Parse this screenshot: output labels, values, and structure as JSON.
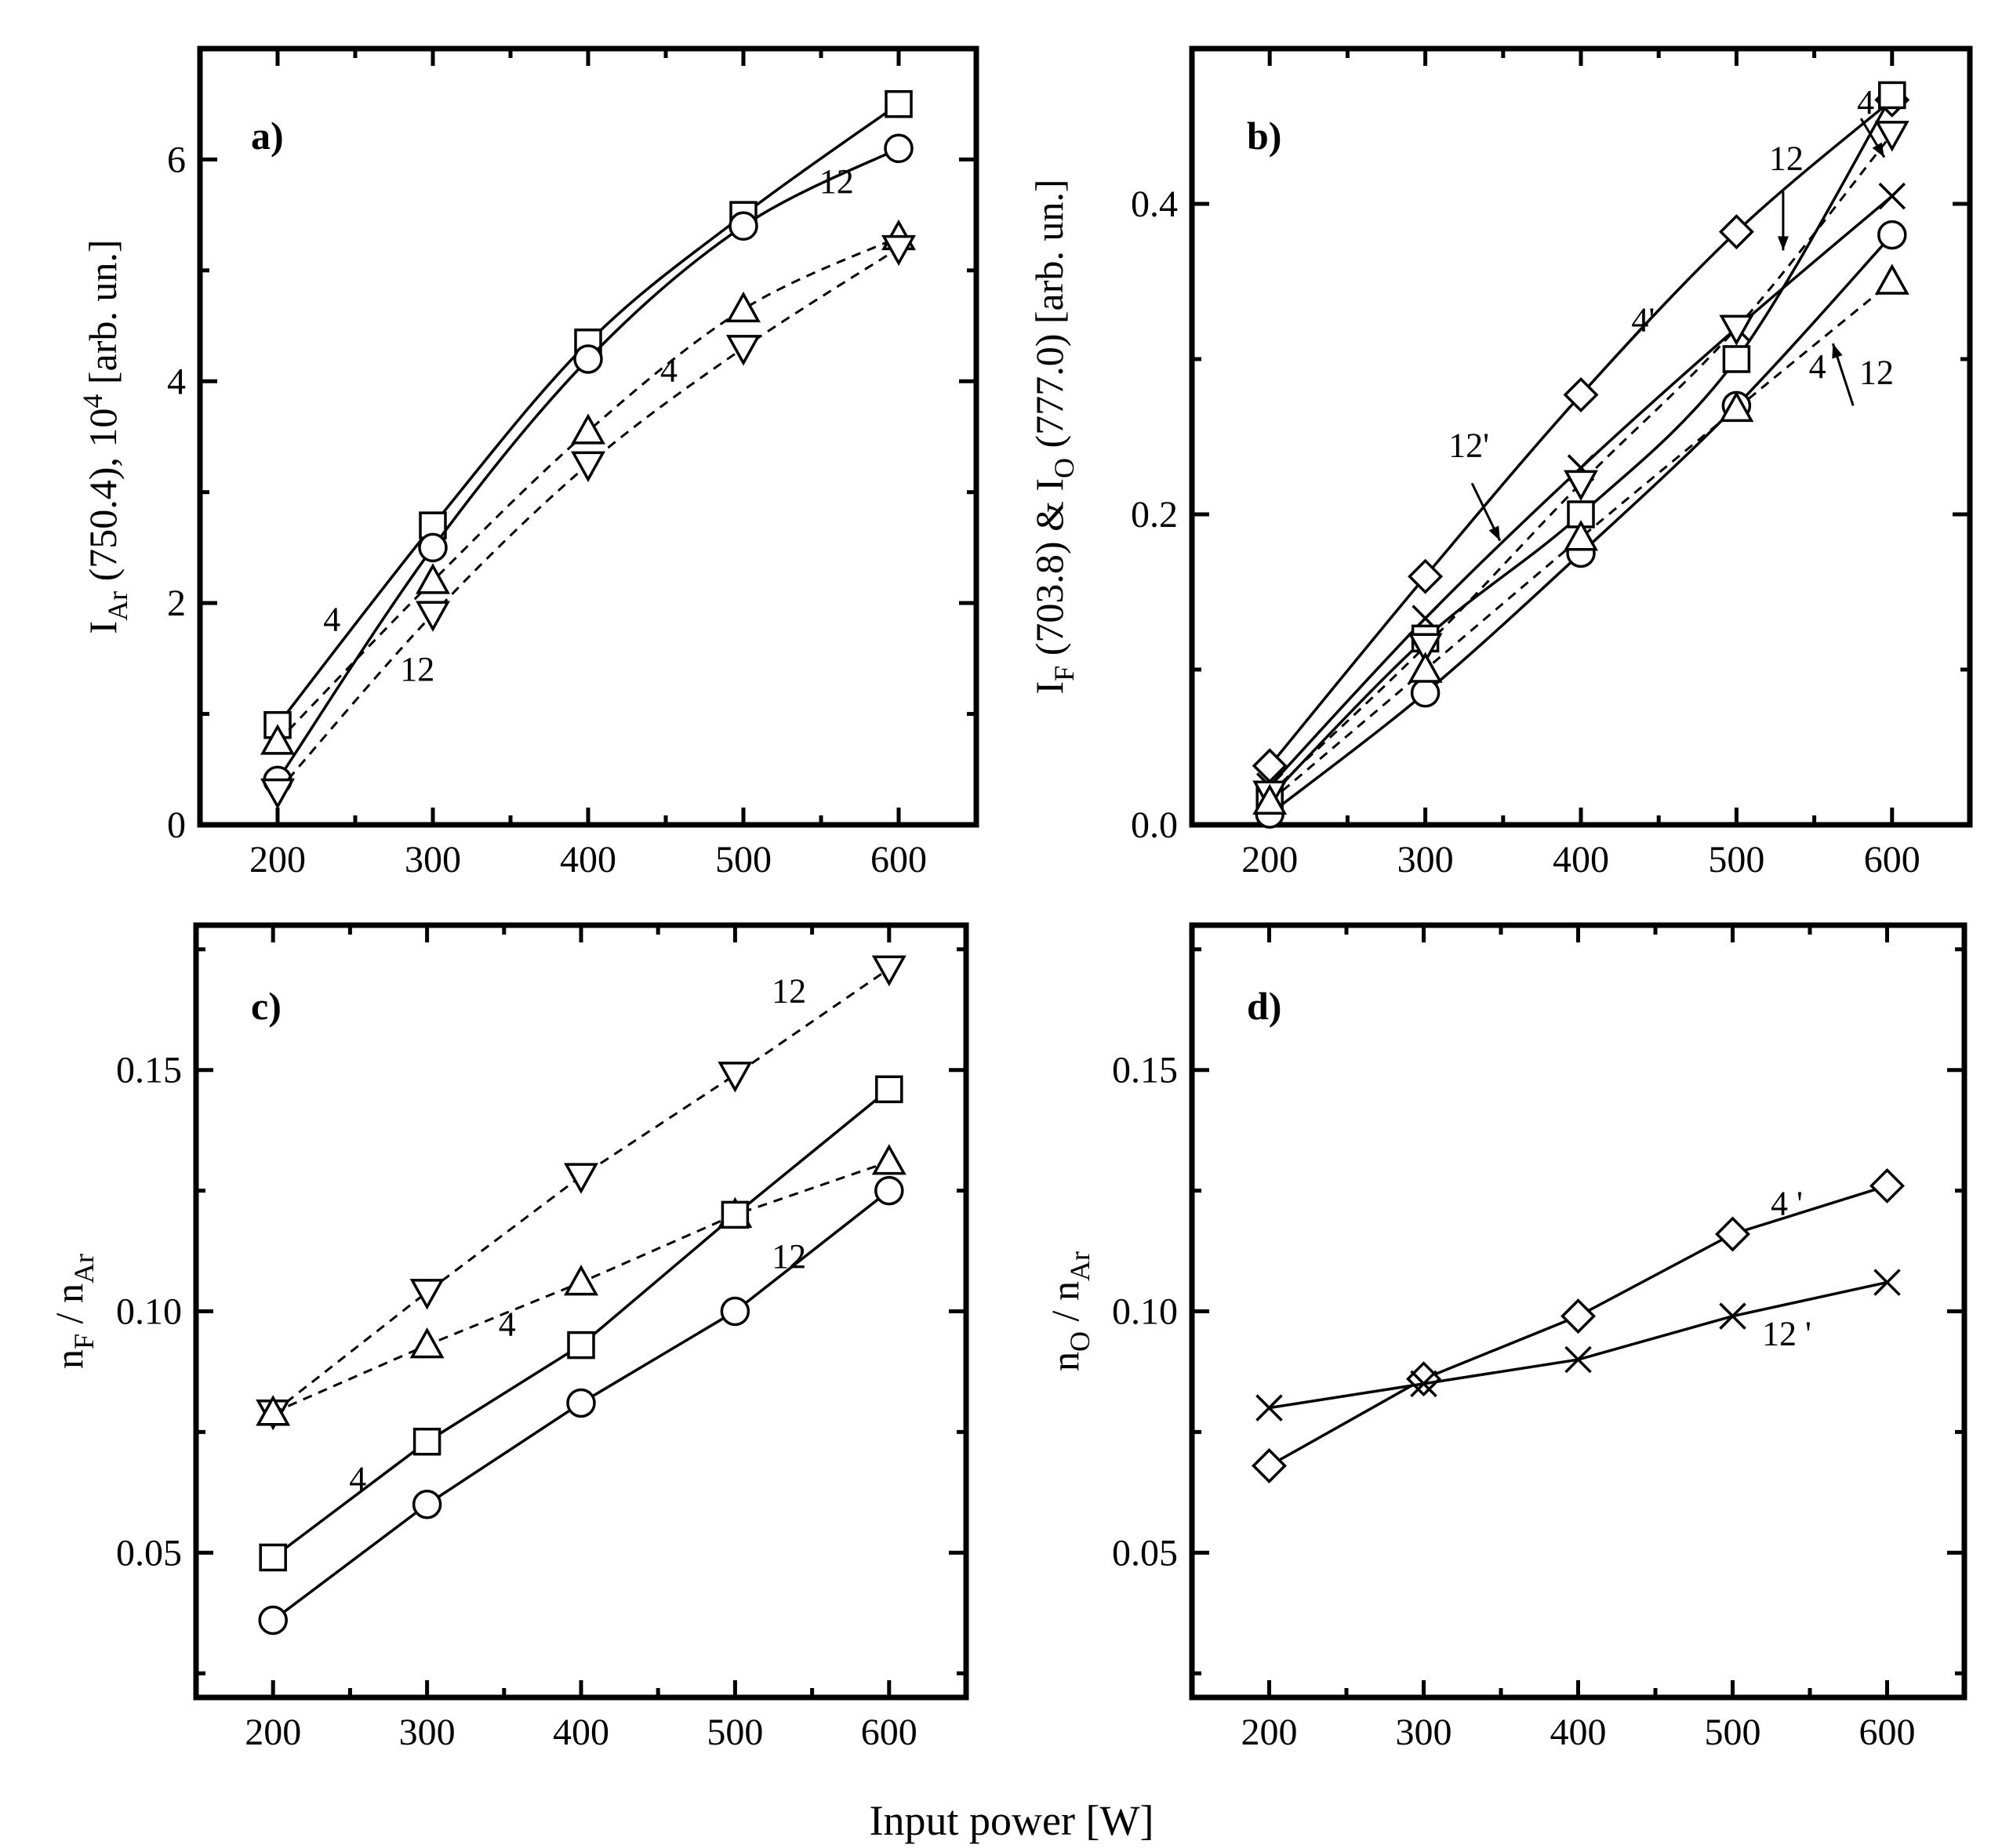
{
  "figure": {
    "common_xlabel": "Input power [W]"
  },
  "chart_data": [
    {
      "id": "a",
      "type": "line",
      "panel_label": "a)",
      "ylabel_parts": {
        "main": "I",
        "sub": "Ar",
        "rest": " (750.4), 10",
        "sup": "4",
        "end": " [arb. un.]"
      },
      "xlim": [
        150,
        650
      ],
      "ylim": [
        0,
        7
      ],
      "xticks": [
        200,
        300,
        400,
        500,
        600
      ],
      "xtick_labels": [
        "200",
        "300",
        "400",
        "500",
        "600"
      ],
      "yticks": [
        0,
        2,
        4,
        6
      ],
      "ytick_labels": [
        "0",
        "2",
        "4",
        "6"
      ],
      "series": [
        {
          "name": "4 (solid, square)",
          "marker": "square",
          "style": "solid",
          "x": [
            200,
            300,
            400,
            500,
            600
          ],
          "y": [
            0.9,
            2.7,
            4.35,
            5.5,
            6.5
          ]
        },
        {
          "name": "12 (solid, circle)",
          "marker": "circle",
          "style": "solid",
          "x": [
            200,
            300,
            400,
            500,
            600
          ],
          "y": [
            0.4,
            2.5,
            4.2,
            5.4,
            6.1
          ]
        },
        {
          "name": "4 (dashed, triangle-up)",
          "marker": "triangle-up",
          "style": "dashed",
          "x": [
            200,
            300,
            400,
            500,
            600
          ],
          "y": [
            0.75,
            2.2,
            3.55,
            4.65,
            5.3
          ]
        },
        {
          "name": "12 (dashed, triangle-down)",
          "marker": "triangle-down",
          "style": "dashed",
          "x": [
            200,
            300,
            400,
            500,
            600
          ],
          "y": [
            0.3,
            1.9,
            3.25,
            4.3,
            5.2
          ]
        }
      ],
      "annotations": [
        {
          "text": "4",
          "x": 235,
          "y": 1.75
        },
        {
          "text": "12",
          "x": 290,
          "y": 1.3
        },
        {
          "text": "4",
          "x": 452,
          "y": 4.0
        },
        {
          "text": "12",
          "x": 560,
          "y": 5.7
        }
      ]
    },
    {
      "id": "b",
      "type": "line",
      "panel_label": "b)",
      "ylabel_parts": {
        "main": "I",
        "sub": "F",
        "rest": " (703.8) & I",
        "sub2": "O",
        "end": " (777.0) [arb. un.]"
      },
      "xlim": [
        150,
        650
      ],
      "ylim": [
        0,
        0.5
      ],
      "xticks": [
        200,
        300,
        400,
        500,
        600
      ],
      "xtick_labels": [
        "200",
        "300",
        "400",
        "500",
        "600"
      ],
      "yticks": [
        0.0,
        0.2,
        0.4
      ],
      "ytick_labels": [
        "0.0",
        "0.2",
        "0.4"
      ],
      "series": [
        {
          "name": "4' (diamond)",
          "marker": "diamond",
          "style": "solid",
          "x": [
            200,
            300,
            400,
            500,
            600
          ],
          "y": [
            0.038,
            0.16,
            0.277,
            0.382,
            0.467
          ]
        },
        {
          "name": "12' (x)",
          "marker": "x",
          "style": "solid",
          "x": [
            200,
            300,
            400,
            500,
            600
          ],
          "y": [
            0.025,
            0.133,
            0.23,
            0.32,
            0.405
          ]
        },
        {
          "name": "4 (square)",
          "marker": "square",
          "style": "solid",
          "x": [
            200,
            300,
            400,
            500,
            600
          ],
          "y": [
            0.018,
            0.12,
            0.2,
            0.3,
            0.47
          ]
        },
        {
          "name": "12 (circle)",
          "marker": "circle",
          "style": "solid",
          "x": [
            200,
            300,
            400,
            500,
            600
          ],
          "y": [
            0.007,
            0.085,
            0.175,
            0.27,
            0.38
          ]
        },
        {
          "name": "4 (triangle-down, dashed)",
          "marker": "triangle-down",
          "style": "dashed",
          "x": [
            200,
            300,
            400,
            500,
            600
          ],
          "y": [
            0.02,
            0.115,
            0.22,
            0.32,
            0.445
          ]
        },
        {
          "name": "12 (triangle-up, dashed)",
          "marker": "triangle-up",
          "style": "dashed",
          "x": [
            200,
            300,
            400,
            500,
            600
          ],
          "y": [
            0.015,
            0.1,
            0.185,
            0.268,
            0.35
          ]
        }
      ],
      "annotations": [
        {
          "text": "4",
          "x": 583,
          "y": 0.458
        },
        {
          "text": "12",
          "x": 532,
          "y": 0.422
        },
        {
          "text": "4'",
          "x": 440,
          "y": 0.318
        },
        {
          "text": "12'",
          "x": 328,
          "y": 0.237
        },
        {
          "text": "4",
          "x": 552,
          "y": 0.288
        },
        {
          "text": "12",
          "x": 590,
          "y": 0.284
        }
      ]
    },
    {
      "id": "c",
      "type": "line",
      "panel_label": "c)",
      "ylabel_parts": {
        "main": "n",
        "sub": "F",
        "rest": " / n",
        "sub2": "Ar"
      },
      "xlim": [
        150,
        650
      ],
      "ylim": [
        0.02,
        0.18
      ],
      "xticks": [
        200,
        300,
        400,
        500,
        600
      ],
      "xtick_labels": [
        "200",
        "300",
        "400",
        "500",
        "600"
      ],
      "yticks": [
        0.05,
        0.1,
        0.15
      ],
      "ytick_labels": [
        "0.05",
        "0.10",
        "0.15"
      ],
      "series": [
        {
          "name": "12 (triangle-down, dashed)",
          "marker": "triangle-down",
          "style": "dashed",
          "x": [
            200,
            300,
            400,
            500,
            600
          ],
          "y": [
            0.079,
            0.104,
            0.128,
            0.149,
            0.171
          ]
        },
        {
          "name": "4 (triangle-up, dashed)",
          "marker": "triangle-up",
          "style": "dashed",
          "x": [
            200,
            300,
            400,
            500,
            600
          ],
          "y": [
            0.079,
            0.093,
            0.106,
            0.12,
            0.131
          ]
        },
        {
          "name": "4 (square)",
          "marker": "square",
          "style": "solid",
          "x": [
            200,
            300,
            400,
            500,
            600
          ],
          "y": [
            0.049,
            0.073,
            0.093,
            0.12,
            0.146
          ]
        },
        {
          "name": "12 (circle)",
          "marker": "circle",
          "style": "solid",
          "x": [
            200,
            300,
            400,
            500,
            600
          ],
          "y": [
            0.036,
            0.06,
            0.081,
            0.1,
            0.125
          ]
        }
      ],
      "annotations": [
        {
          "text": "12",
          "x": 535,
          "y": 0.164
        },
        {
          "text": "4",
          "x": 352,
          "y": 0.095
        },
        {
          "text": "12",
          "x": 535,
          "y": 0.109
        },
        {
          "text": "4",
          "x": 255,
          "y": 0.063
        }
      ]
    },
    {
      "id": "d",
      "type": "line",
      "panel_label": "d)",
      "ylabel_parts": {
        "main": "n",
        "sub": "O",
        "rest": " / n",
        "sub2": "Ar"
      },
      "xlim": [
        150,
        650
      ],
      "ylim": [
        0.02,
        0.18
      ],
      "xticks": [
        200,
        300,
        400,
        500,
        600
      ],
      "xtick_labels": [
        "200",
        "300",
        "400",
        "500",
        "600"
      ],
      "yticks": [
        0.05,
        0.1,
        0.15
      ],
      "ytick_labels": [
        "0.05",
        "0.10",
        "0.15"
      ],
      "series": [
        {
          "name": "4' (diamond)",
          "marker": "diamond",
          "style": "solid",
          "x": [
            200,
            300,
            400,
            500,
            600
          ],
          "y": [
            0.068,
            0.086,
            0.099,
            0.116,
            0.126
          ]
        },
        {
          "name": "12' (x)",
          "marker": "x",
          "style": "solid",
          "x": [
            200,
            300,
            400,
            500,
            600
          ],
          "y": [
            0.08,
            0.085,
            0.09,
            0.099,
            0.106
          ]
        }
      ],
      "annotations": [
        {
          "text": "4 '",
          "x": 535,
          "y": 0.12
        },
        {
          "text": "12 '",
          "x": 535,
          "y": 0.093
        }
      ]
    }
  ]
}
